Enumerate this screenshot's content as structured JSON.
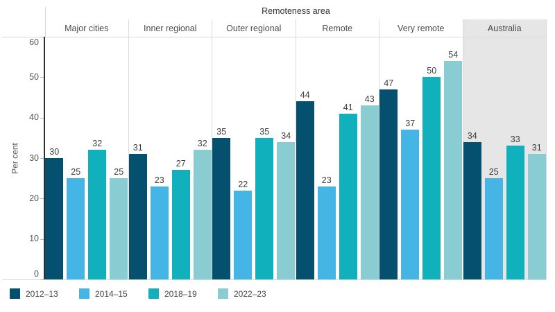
{
  "chart_data": {
    "type": "bar",
    "title": "Remoteness area",
    "ylabel": "Per cent",
    "ylim": [
      0,
      60
    ],
    "yticks": [
      0,
      10,
      20,
      30,
      40,
      50,
      60
    ],
    "grid": false,
    "legend_position": "bottom",
    "categories": [
      "Major cities",
      "Inner regional",
      "Outer regional",
      "Remote",
      "Very remote",
      "Australia"
    ],
    "highlighted_category": "Australia",
    "series": [
      {
        "name": "2012–13",
        "color": "#05506e",
        "values": [
          30,
          31,
          35,
          44,
          47,
          34
        ]
      },
      {
        "name": "2014–15",
        "color": "#45b5e6",
        "values": [
          25,
          23,
          22,
          23,
          37,
          25
        ]
      },
      {
        "name": "2018–19",
        "color": "#10b1bd",
        "values": [
          32,
          27,
          35,
          41,
          50,
          33
        ]
      },
      {
        "name": "2022–23",
        "color": "#89cdd3",
        "values": [
          25,
          32,
          34,
          43,
          54,
          31
        ]
      }
    ],
    "colors": {
      "highlight_panel_bg": "#e6e6e6",
      "separator": "#d9d9d9",
      "axis_line": "#2e2e2e",
      "value_label": "#3c3c3c"
    }
  }
}
